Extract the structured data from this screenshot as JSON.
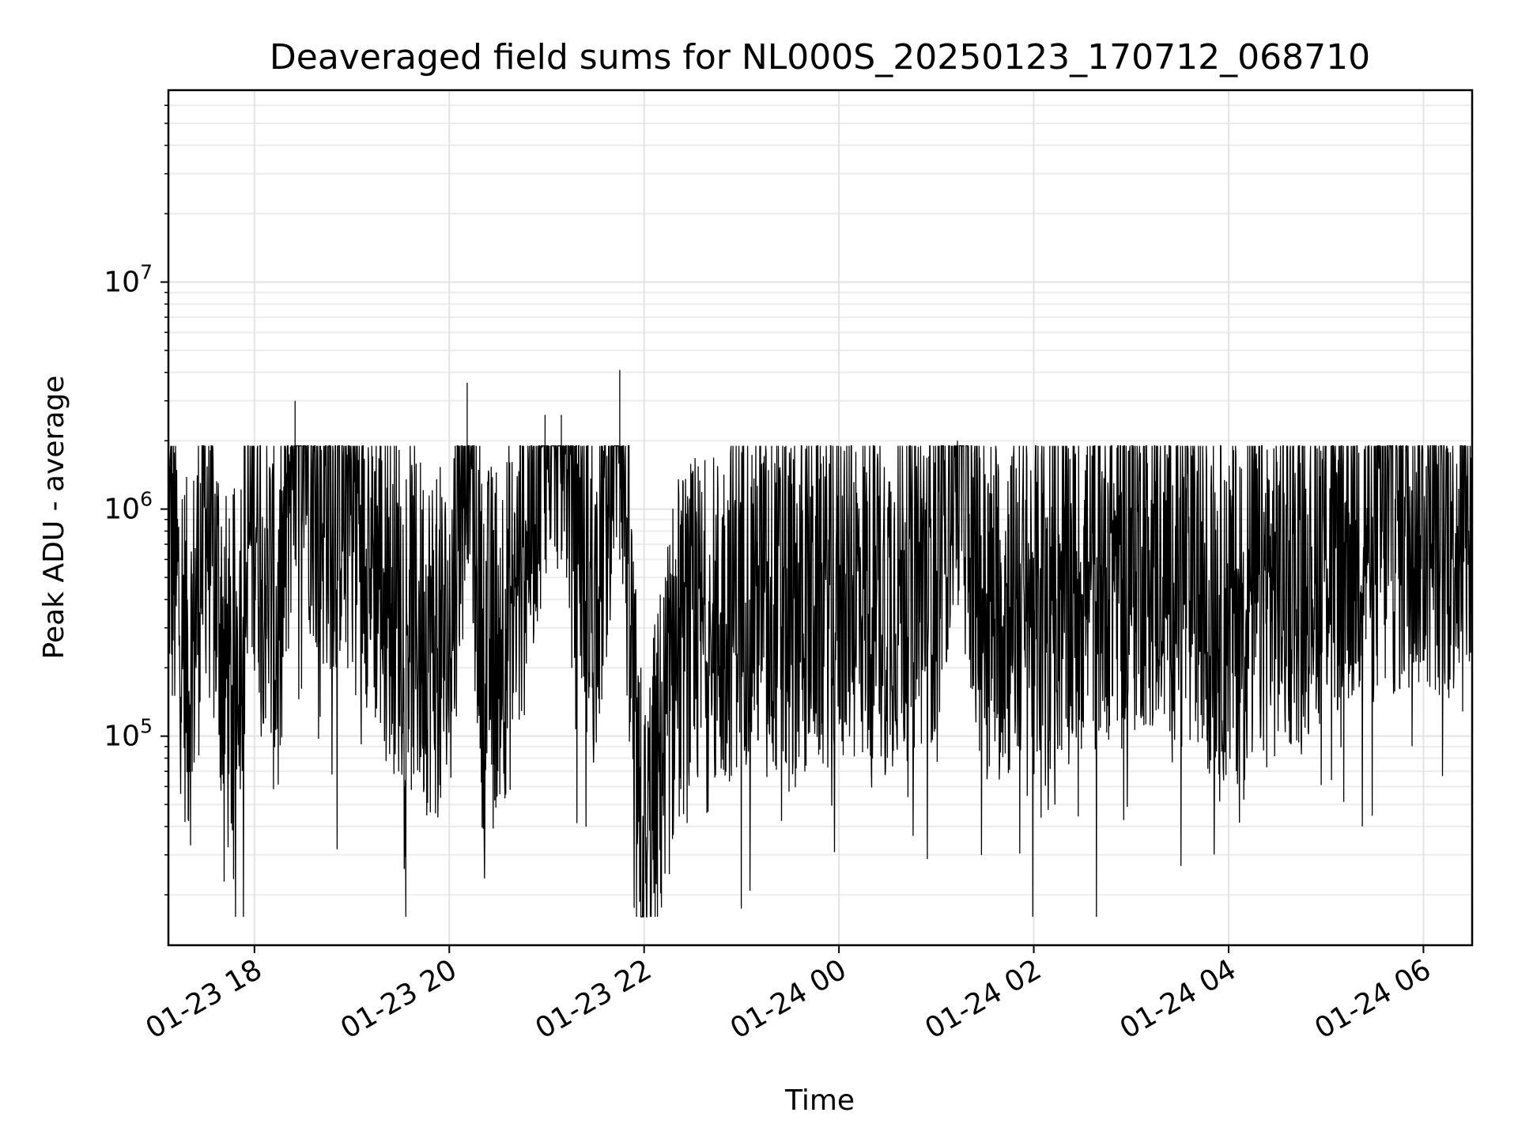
{
  "chart_data": {
    "type": "line",
    "title": "Deaveraged field sums for NL000S_20250123_170712_068710",
    "xlabel": "Time",
    "ylabel": "Peak ADU - average",
    "yscale": "log",
    "ylim": [
      12000,
      70000000
    ],
    "xlim": [
      "2025-01-23 17:07",
      "2025-01-24 06:30"
    ],
    "grid": true,
    "x_tick_labels": [
      "01-23 18",
      "01-23 20",
      "01-23 22",
      "01-24 00",
      "01-24 02",
      "01-24 04",
      "01-24 06"
    ],
    "x_ticks": [
      "2025-01-23 18:00",
      "2025-01-23 20:00",
      "2025-01-23 22:00",
      "2025-01-24 00:00",
      "2025-01-24 02:00",
      "2025-01-24 04:00",
      "2025-01-24 06:00"
    ],
    "y_ticks": [
      {
        "value": 100000,
        "base": "10",
        "exp": "5"
      },
      {
        "value": 1000000,
        "base": "10",
        "exp": "6"
      },
      {
        "value": 10000000,
        "base": "10",
        "exp": "7"
      }
    ],
    "series": [
      {
        "color": "#000000",
        "points": [
          [
            "2025-01-23 17:07",
            700000
          ],
          [
            "2025-01-23 17:20",
            150000
          ],
          [
            "2025-01-23 17:30",
            900000
          ],
          [
            "2025-01-23 17:45",
            120000
          ],
          [
            "2025-01-23 18:00",
            1000000
          ],
          [
            "2025-01-23 18:15",
            200000
          ],
          [
            "2025-01-23 18:25",
            3000000
          ],
          [
            "2025-01-23 18:40",
            900000
          ],
          [
            "2025-01-23 19:00",
            1100000
          ],
          [
            "2025-01-23 19:20",
            400000
          ],
          [
            "2025-01-23 19:40",
            250000
          ],
          [
            "2025-01-23 20:00",
            200000
          ],
          [
            "2025-01-23 20:11",
            3600000
          ],
          [
            "2025-01-23 20:20",
            200000
          ],
          [
            "2025-01-23 20:40",
            300000
          ],
          [
            "2025-01-23 20:59",
            2600000
          ],
          [
            "2025-01-23 21:09",
            2600000
          ],
          [
            "2025-01-23 21:30",
            300000
          ],
          [
            "2025-01-23 21:45",
            4100000
          ],
          [
            "2025-01-23 21:58",
            17000
          ],
          [
            "2025-01-23 22:20",
            200000
          ],
          [
            "2025-01-23 22:45",
            250000
          ],
          [
            "2025-01-23 23:00",
            400000
          ],
          [
            "2025-01-23 23:30",
            300000
          ],
          [
            "2025-01-24 00:00",
            400000
          ],
          [
            "2025-01-24 00:30",
            350000
          ],
          [
            "2025-01-24 01:00",
            500000
          ],
          [
            "2025-01-24 01:13",
            2000000
          ],
          [
            "2025-01-24 01:30",
            300000
          ],
          [
            "2025-01-24 02:00",
            350000
          ],
          [
            "2025-01-24 02:30",
            400000
          ],
          [
            "2025-01-24 03:00",
            600000
          ],
          [
            "2025-01-24 03:30",
            450000
          ],
          [
            "2025-01-24 04:00",
            300000
          ],
          [
            "2025-01-24 04:30",
            400000
          ],
          [
            "2025-01-24 05:00",
            600000
          ],
          [
            "2025-01-24 05:30",
            700000
          ],
          [
            "2025-01-24 06:00",
            800000
          ],
          [
            "2025-01-24 06:30",
            700000
          ]
        ]
      }
    ]
  }
}
